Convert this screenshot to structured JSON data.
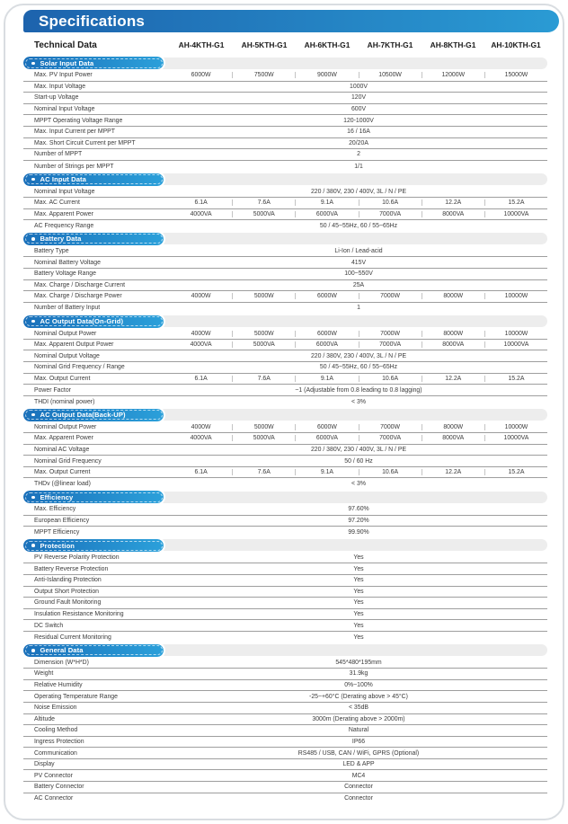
{
  "header": {
    "title": "Specifications"
  },
  "colors": {
    "header_gradient_left": "#1d63ad",
    "header_gradient_right": "#2a9bd4",
    "pill_gradient_left": "#1a70ba",
    "pill_gradient_right": "#2ba0da",
    "pill_track": "#ededed",
    "row_line": "#9e9e9e",
    "text": "#3b3b3b"
  },
  "table": {
    "corner_label": "Technical Data",
    "models": [
      "AH-4KTH-G1",
      "AH-5KTH-G1",
      "AH-6KTH-G1",
      "AH-7KTH-G1",
      "AH-8KTH-G1",
      "AH-10KTH-G1"
    ],
    "sections": [
      {
        "title": "Solar Input Data",
        "rows": [
          {
            "label": "Max. PV Input Power",
            "values": [
              "6000W",
              "7500W",
              "9000W",
              "10500W",
              "12000W",
              "15000W"
            ]
          },
          {
            "label": "Max. Input Voltage",
            "values": [
              "1000V"
            ]
          },
          {
            "label": "Start-up Voltage",
            "values": [
              "120V"
            ]
          },
          {
            "label": "Nominal Input Voltage",
            "values": [
              "600V"
            ]
          },
          {
            "label": "MPPT Operating Voltage Range",
            "values": [
              "120-1000V"
            ]
          },
          {
            "label": "Max. Input Current per MPPT",
            "values": [
              "16 / 16A"
            ]
          },
          {
            "label": "Max. Short Circuit Current per MPPT",
            "values": [
              "20/20A"
            ]
          },
          {
            "label": "Number of MPPT",
            "values": [
              "2"
            ]
          },
          {
            "label": "Number of Strings per MPPT",
            "values": [
              "1/1"
            ]
          }
        ]
      },
      {
        "title": "AC Input Data",
        "rows": [
          {
            "label": "Nominal Input Voltage",
            "values": [
              "220 / 380V, 230 / 400V, 3L / N / PE"
            ]
          },
          {
            "label": "Max. AC Current",
            "values": [
              "6.1A",
              "7.6A",
              "9.1A",
              "10.6A",
              "12.2A",
              "15.2A"
            ]
          },
          {
            "label": "Max. Apparent Power",
            "values": [
              "4000VA",
              "5000VA",
              "6000VA",
              "7000VA",
              "8000VA",
              "10000VA"
            ]
          },
          {
            "label": "AC Frequency Range",
            "values": [
              "50 / 45~55Hz, 60 / 55~65Hz"
            ]
          }
        ]
      },
      {
        "title": "Battery Data",
        "rows": [
          {
            "label": "Battery Type",
            "values": [
              "Li-Ion / Lead-acid"
            ]
          },
          {
            "label": "Nominal Battery Voltage",
            "values": [
              "415V"
            ]
          },
          {
            "label": "Battery Voltage Range",
            "values": [
              "100~550V"
            ]
          },
          {
            "label": "Max. Charge / Discharge Current",
            "values": [
              "25A"
            ]
          },
          {
            "label": "Max. Charge / Discharge Power",
            "values": [
              "4000W",
              "5000W",
              "6000W",
              "7000W",
              "8000W",
              "10000W"
            ]
          },
          {
            "label": "Number of Battery Input",
            "values": [
              "1"
            ]
          }
        ]
      },
      {
        "title": "AC Output Data(On-Grid)",
        "rows": [
          {
            "label": "Nominal Output Power",
            "values": [
              "4000W",
              "5000W",
              "6000W",
              "7000W",
              "8000W",
              "10000W"
            ]
          },
          {
            "label": "Max. Apparent Output Power",
            "values": [
              "4000VA",
              "5000VA",
              "6000VA",
              "7000VA",
              "8000VA",
              "10000VA"
            ]
          },
          {
            "label": "Nominal Output Voltage",
            "values": [
              "220 / 380V, 230 / 400V, 3L / N / PE"
            ]
          },
          {
            "label": "Nominal Grid Frequency / Range",
            "values": [
              "50 / 45~55Hz, 60 / 55~65Hz"
            ]
          },
          {
            "label": "Max. Output Current",
            "values": [
              "6.1A",
              "7.6A",
              "9.1A",
              "10.6A",
              "12.2A",
              "15.2A"
            ]
          },
          {
            "label": "Power Factor",
            "values": [
              "~1 (Adjustable from 0.8 leading to 0.8 lagging)"
            ]
          },
          {
            "label": "THDI (nominal power)",
            "values": [
              "< 3%"
            ]
          }
        ]
      },
      {
        "title": "AC Output Data(Back-UP)",
        "rows": [
          {
            "label": "Nominal Output Power",
            "values": [
              "4000W",
              "5000W",
              "6000W",
              "7000W",
              "8000W",
              "10000W"
            ]
          },
          {
            "label": "Max. Apparent Power",
            "values": [
              "4000VA",
              "5000VA",
              "6000VA",
              "7000VA",
              "8000VA",
              "10000VA"
            ]
          },
          {
            "label": "Nominal AC Voltage",
            "values": [
              "220 / 380V, 230 / 400V, 3L / N / PE"
            ]
          },
          {
            "label": "Nominal Grid Frequency",
            "values": [
              "50 / 60 Hz"
            ]
          },
          {
            "label": "Max. Output Current",
            "values": [
              "6.1A",
              "7.6A",
              "9.1A",
              "10.6A",
              "12.2A",
              "15.2A"
            ]
          },
          {
            "label": "THDv (@linear load)",
            "values": [
              "< 3%"
            ]
          }
        ]
      },
      {
        "title": "Efficiency",
        "rows": [
          {
            "label": "Max. Efficiency",
            "values": [
              "97.60%"
            ]
          },
          {
            "label": "European Efficiency",
            "values": [
              "97.20%"
            ]
          },
          {
            "label": "MPPT Efficiency",
            "values": [
              "99.90%"
            ]
          }
        ]
      },
      {
        "title": "Protection",
        "rows": [
          {
            "label": "PV Reverse Polarity Protection",
            "values": [
              "Yes"
            ]
          },
          {
            "label": "Battery Reverse Protection",
            "values": [
              "Yes"
            ]
          },
          {
            "label": "Anti-Islanding Protection",
            "values": [
              "Yes"
            ]
          },
          {
            "label": "Output Short Protection",
            "values": [
              "Yes"
            ]
          },
          {
            "label": "Ground Fault Monitoring",
            "values": [
              "Yes"
            ]
          },
          {
            "label": "Insulation Resistance Monitoring",
            "values": [
              "Yes"
            ]
          },
          {
            "label": "DC Switch",
            "values": [
              "Yes"
            ]
          },
          {
            "label": "Residual Current Monitoring",
            "values": [
              "Yes"
            ]
          }
        ]
      },
      {
        "title": "General Data",
        "rows": [
          {
            "label": "Dimension (W*H*D)",
            "values": [
              "545*480*195mm"
            ]
          },
          {
            "label": "Weight",
            "values": [
              "31.9kg"
            ]
          },
          {
            "label": "Relative Humidity",
            "values": [
              "0%~100%"
            ]
          },
          {
            "label": "Operating Temperature Range",
            "values": [
              "-25~+60°C (Derating above > 45°C)"
            ]
          },
          {
            "label": "Noise Emission",
            "values": [
              "< 35dB"
            ]
          },
          {
            "label": "Altitude",
            "values": [
              "3000m (Derating above > 2000m)"
            ]
          },
          {
            "label": "Cooling Method",
            "values": [
              "Natural"
            ]
          },
          {
            "label": "Ingress Protection",
            "values": [
              "IP66"
            ]
          },
          {
            "label": "Communication",
            "values": [
              "RS485 / USB, CAN / WiFi, GPRS (Optional)"
            ]
          },
          {
            "label": "Display",
            "values": [
              "LED & APP"
            ]
          },
          {
            "label": "PV Connector",
            "values": [
              "MC4"
            ]
          },
          {
            "label": "Battery Connector",
            "values": [
              "Connector"
            ]
          },
          {
            "label": "AC Connector",
            "values": [
              "Connector"
            ]
          }
        ]
      }
    ]
  }
}
